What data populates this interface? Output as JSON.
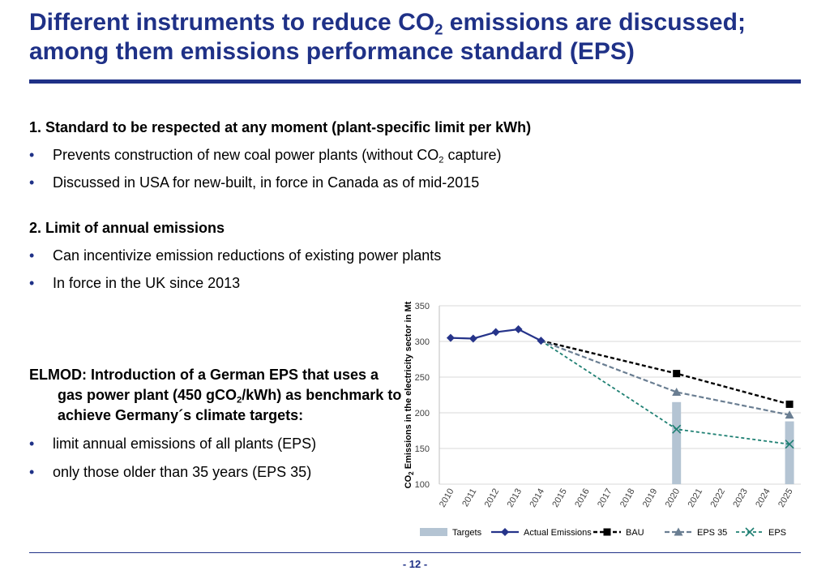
{
  "slide": {
    "title_part1": "Different instruments to reduce CO",
    "title_sub": "2",
    "title_part2": " emissions are discussed; among them emissions performance standard (EPS)",
    "page_number": "- 12 -"
  },
  "section1": {
    "heading": "1. Standard to be respected at any moment (plant-specific limit per kWh)",
    "bullet1_pre": "Prevents construction of new coal power plants (without CO",
    "bullet1_sub": "2",
    "bullet1_post": " capture)",
    "bullet2": "Discussed in USA for new-built, in force in Canada as of mid-2015"
  },
  "section2": {
    "heading": "2. Limit of annual emissions",
    "bullet1": "Can incentivize emission reductions of existing power plants",
    "bullet2": "In force in the UK since 2013"
  },
  "elmod": {
    "heading_pre": "ELMOD: Introduction of a German EPS that uses a gas power plant (450 gCO",
    "heading_sub": "2",
    "heading_post": "/kWh) as benchmark to achieve Germany´s climate targets:",
    "bullet1": "limit annual emissions of all plants (EPS)",
    "bullet2": "only those older than 35 years (EPS 35)"
  },
  "chart_data": {
    "type": "line",
    "ylabel_pre": "CO",
    "ylabel_sub": "2",
    "ylabel_post": " Emissions in the electricity sector in Mt",
    "ylim": [
      100,
      350
    ],
    "yticks": [
      "100",
      "150",
      "200",
      "250",
      "300",
      "350"
    ],
    "grid": true,
    "legend_position": "bottom",
    "categories": [
      "2010",
      "2011",
      "2012",
      "2013",
      "2014",
      "2015",
      "2016",
      "2017",
      "2018",
      "2019",
      "2020",
      "2021",
      "2022",
      "2023",
      "2024",
      "2025"
    ],
    "targets": {
      "name": "Targets",
      "points": [
        [
          "2020",
          215
        ],
        [
          "2025",
          188
        ]
      ]
    },
    "series": [
      {
        "name": "Actual Emissions",
        "points": [
          [
            "2010",
            305
          ],
          [
            "2011",
            304
          ],
          [
            "2012",
            313
          ],
          [
            "2013",
            317
          ],
          [
            "2014",
            301
          ]
        ]
      },
      {
        "name": "BAU",
        "points": [
          [
            "2014",
            301
          ],
          [
            "2020",
            255
          ],
          [
            "2025",
            212
          ]
        ]
      },
      {
        "name": "EPS 35",
        "points": [
          [
            "2014",
            301
          ],
          [
            "2020",
            229
          ],
          [
            "2025",
            197
          ]
        ]
      },
      {
        "name": "EPS",
        "points": [
          [
            "2014",
            301
          ],
          [
            "2020",
            177
          ],
          [
            "2025",
            156
          ]
        ]
      }
    ],
    "colors": {
      "targets": "#b4c4d3",
      "actual": "#26348a",
      "bau": "#000000",
      "eps35": "#6a7e92",
      "eps": "#1f8073",
      "grid": "#d9d9d9"
    }
  }
}
